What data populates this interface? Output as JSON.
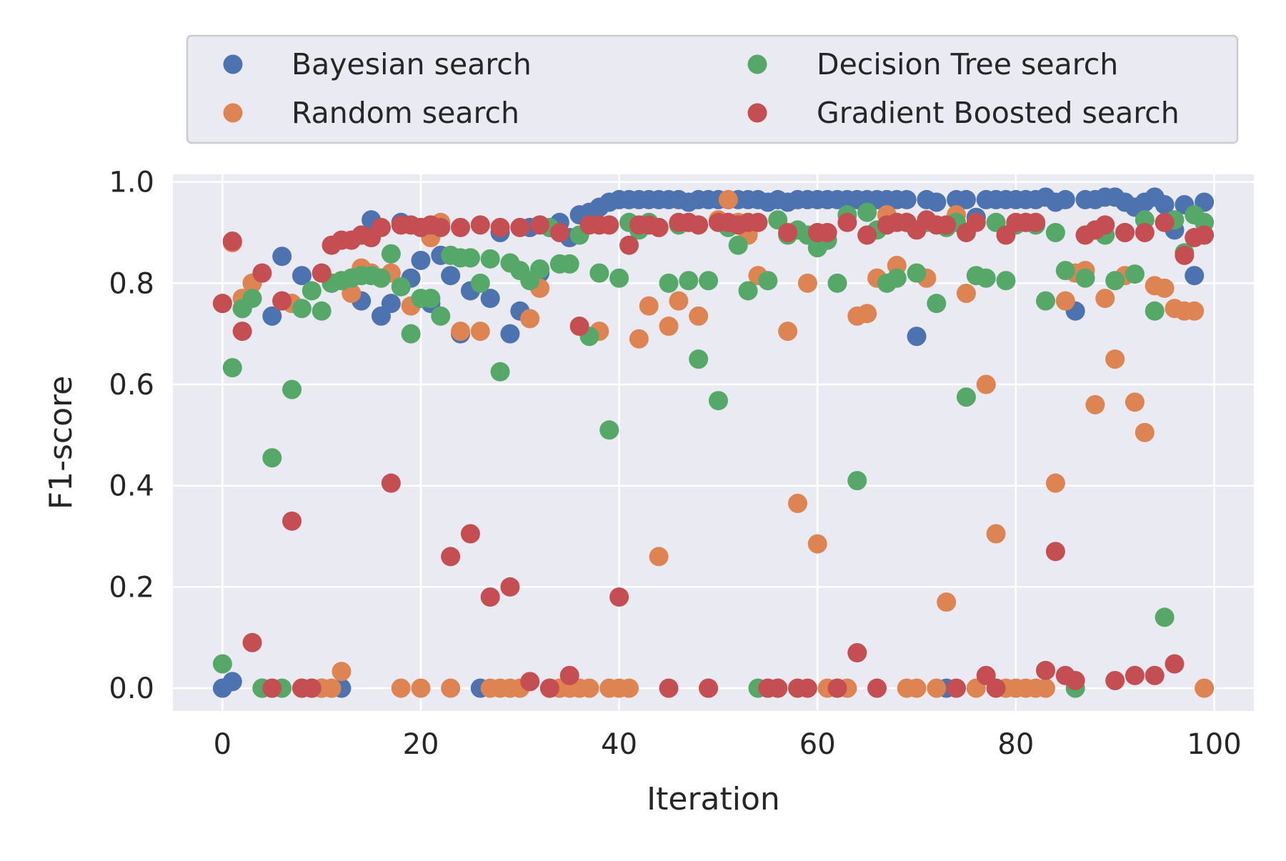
{
  "chart_data": {
    "type": "scatter",
    "title": "",
    "xlabel": "Iteration",
    "ylabel": "F1-score",
    "xlim": [
      -5,
      104
    ],
    "ylim": [
      -0.045,
      1.015
    ],
    "xticks": [
      0,
      20,
      40,
      60,
      80,
      100
    ],
    "yticks": [
      0.0,
      0.2,
      0.4,
      0.6,
      0.8,
      1.0
    ],
    "xtick_labels": [
      "0",
      "20",
      "40",
      "60",
      "80",
      "100"
    ],
    "ytick_labels": [
      "0.0",
      "0.2",
      "0.4",
      "0.6",
      "0.8",
      "1.0"
    ],
    "grid": true,
    "legend_position": "top, above plot (2 columns)",
    "colors": {
      "background": "#eaeaf2",
      "grid": "#ffffff",
      "bayesian": "#4c72b0",
      "random": "#dd8452",
      "decision_tree": "#55a868",
      "gradient_boosted": "#c44e52"
    },
    "series": [
      {
        "name": "Bayesian search",
        "color": "#4c72b0",
        "x": [
          0,
          1,
          2,
          3,
          4,
          5,
          6,
          7,
          8,
          9,
          10,
          11,
          12,
          13,
          14,
          15,
          16,
          17,
          18,
          19,
          20,
          21,
          22,
          23,
          24,
          25,
          26,
          27,
          28,
          29,
          30,
          31,
          32,
          33,
          34,
          35,
          36,
          37,
          38,
          39,
          40,
          41,
          42,
          43,
          44,
          45,
          46,
          47,
          48,
          49,
          50,
          51,
          52,
          53,
          54,
          55,
          56,
          57,
          58,
          59,
          60,
          61,
          62,
          63,
          64,
          65,
          66,
          67,
          68,
          69,
          70,
          71,
          72,
          73,
          74,
          75,
          76,
          77,
          78,
          79,
          80,
          81,
          82,
          83,
          84,
          85,
          86,
          87,
          88,
          89,
          90,
          91,
          92,
          93,
          94,
          95,
          96,
          97,
          98,
          99
        ],
        "y": [
          0.0,
          0.013,
          0.75,
          0.8,
          0.0,
          0.735,
          0.853,
          0.76,
          0.815,
          0.0,
          0.0,
          0.8,
          0.0,
          0.81,
          0.765,
          0.925,
          0.735,
          0.76,
          0.92,
          0.81,
          0.845,
          0.76,
          0.855,
          0.815,
          0.7,
          0.785,
          0.0,
          0.77,
          0.9,
          0.7,
          0.745,
          0.91,
          0.82,
          0.91,
          0.92,
          0.89,
          0.935,
          0.94,
          0.95,
          0.96,
          0.965,
          0.965,
          0.965,
          0.965,
          0.965,
          0.965,
          0.965,
          0.96,
          0.965,
          0.965,
          0.965,
          0.965,
          0.965,
          0.965,
          0.965,
          0.96,
          0.965,
          0.96,
          0.965,
          0.965,
          0.965,
          0.965,
          0.965,
          0.965,
          0.965,
          0.965,
          0.965,
          0.965,
          0.965,
          0.965,
          0.695,
          0.965,
          0.96,
          0.0,
          0.965,
          0.965,
          0.93,
          0.965,
          0.965,
          0.965,
          0.965,
          0.965,
          0.965,
          0.97,
          0.96,
          0.965,
          0.745,
          0.965,
          0.965,
          0.97,
          0.97,
          0.96,
          0.95,
          0.96,
          0.97,
          0.955,
          0.905,
          0.955,
          0.815,
          0.96
        ]
      },
      {
        "name": "Random search",
        "color": "#dd8452",
        "x": [
          0,
          1,
          2,
          3,
          4,
          5,
          6,
          7,
          8,
          9,
          10,
          11,
          12,
          13,
          14,
          15,
          16,
          17,
          18,
          19,
          20,
          21,
          22,
          23,
          24,
          25,
          26,
          27,
          28,
          29,
          30,
          31,
          32,
          33,
          34,
          35,
          36,
          37,
          38,
          39,
          40,
          41,
          42,
          43,
          44,
          45,
          46,
          47,
          48,
          49,
          50,
          51,
          52,
          53,
          54,
          55,
          56,
          57,
          58,
          59,
          60,
          61,
          62,
          63,
          64,
          65,
          66,
          67,
          68,
          69,
          70,
          71,
          72,
          73,
          74,
          75,
          76,
          77,
          78,
          79,
          80,
          81,
          82,
          83,
          84,
          85,
          86,
          87,
          88,
          89,
          90,
          91,
          92,
          93,
          94,
          95,
          96,
          97,
          98,
          99
        ],
        "y": [
          0.76,
          0.88,
          0.77,
          0.8,
          0.0,
          0.0,
          0.765,
          0.76,
          0.0,
          0.0,
          0.0,
          0.0,
          0.033,
          0.78,
          0.83,
          0.82,
          0.81,
          0.82,
          0.0,
          0.755,
          0.0,
          0.89,
          0.92,
          0.0,
          0.705,
          0.85,
          0.705,
          0.0,
          0.0,
          0.0,
          0.0,
          0.73,
          0.79,
          0.0,
          0.0,
          0.0,
          0.0,
          0.0,
          0.705,
          0.0,
          0.0,
          0.0,
          0.69,
          0.755,
          0.26,
          0.715,
          0.765,
          0.92,
          0.735,
          0.0,
          0.925,
          0.965,
          0.92,
          0.895,
          0.815,
          0.0,
          0.0,
          0.705,
          0.365,
          0.8,
          0.285,
          0.0,
          0.0,
          0.0,
          0.735,
          0.74,
          0.81,
          0.935,
          0.835,
          0.0,
          0.0,
          0.81,
          0.0,
          0.17,
          0.935,
          0.78,
          0.0,
          0.6,
          0.305,
          0.0,
          0.0,
          0.0,
          0.0,
          0.0,
          0.405,
          0.765,
          0.82,
          0.825,
          0.56,
          0.77,
          0.65,
          0.815,
          0.565,
          0.505,
          0.795,
          0.79,
          0.75,
          0.745,
          0.745,
          0.0
        ]
      },
      {
        "name": "Decision Tree search",
        "color": "#55a868",
        "x": [
          0,
          1,
          2,
          3,
          4,
          5,
          6,
          7,
          8,
          9,
          10,
          11,
          12,
          13,
          14,
          15,
          16,
          17,
          18,
          19,
          20,
          21,
          22,
          23,
          24,
          25,
          26,
          27,
          28,
          29,
          30,
          31,
          32,
          33,
          34,
          35,
          36,
          37,
          38,
          39,
          40,
          41,
          42,
          43,
          44,
          45,
          46,
          47,
          48,
          49,
          50,
          51,
          52,
          53,
          54,
          55,
          56,
          57,
          58,
          59,
          60,
          61,
          62,
          63,
          64,
          65,
          66,
          67,
          68,
          69,
          70,
          71,
          72,
          73,
          74,
          75,
          76,
          77,
          78,
          79,
          80,
          81,
          82,
          83,
          84,
          85,
          86,
          87,
          88,
          89,
          90,
          91,
          92,
          93,
          94,
          95,
          96,
          97,
          98,
          99
        ],
        "y": [
          0.048,
          0.633,
          0.75,
          0.77,
          0.0,
          0.455,
          0.0,
          0.59,
          0.75,
          0.785,
          0.745,
          0.8,
          0.805,
          0.81,
          0.815,
          0.815,
          0.81,
          0.858,
          0.793,
          0.7,
          0.77,
          0.77,
          0.735,
          0.855,
          0.85,
          0.85,
          0.8,
          0.848,
          0.625,
          0.84,
          0.825,
          0.805,
          0.828,
          0.91,
          0.838,
          0.838,
          0.895,
          0.695,
          0.82,
          0.51,
          0.81,
          0.92,
          0.905,
          0.92,
          0.91,
          0.8,
          0.915,
          0.805,
          0.65,
          0.805,
          0.568,
          0.91,
          0.875,
          0.785,
          0.0,
          0.805,
          0.925,
          0.895,
          0.905,
          0.895,
          0.87,
          0.885,
          0.8,
          0.935,
          0.41,
          0.94,
          0.905,
          0.8,
          0.81,
          0.92,
          0.82,
          0.92,
          0.76,
          0.91,
          0.92,
          0.575,
          0.815,
          0.81,
          0.92,
          0.805,
          0.915,
          0.92,
          0.915,
          0.765,
          0.9,
          0.825,
          0.0,
          0.81,
          0.905,
          0.895,
          0.805,
          0.9,
          0.818,
          0.925,
          0.745,
          0.14,
          0.925,
          0.86,
          0.935,
          0.92
        ]
      },
      {
        "name": "Gradient Boosted search",
        "color": "#c44e52",
        "x": [
          0,
          1,
          2,
          3,
          4,
          5,
          6,
          7,
          8,
          9,
          10,
          11,
          12,
          13,
          14,
          15,
          16,
          17,
          18,
          19,
          20,
          21,
          22,
          23,
          24,
          25,
          26,
          27,
          28,
          29,
          30,
          31,
          32,
          33,
          34,
          35,
          36,
          37,
          38,
          39,
          40,
          41,
          42,
          43,
          44,
          45,
          46,
          47,
          48,
          49,
          50,
          51,
          52,
          53,
          54,
          55,
          56,
          57,
          58,
          59,
          60,
          61,
          62,
          63,
          64,
          65,
          66,
          67,
          68,
          69,
          70,
          71,
          72,
          73,
          74,
          75,
          76,
          77,
          78,
          79,
          80,
          81,
          82,
          83,
          84,
          85,
          86,
          87,
          88,
          89,
          90,
          91,
          92,
          93,
          94,
          95,
          96,
          97,
          98,
          99
        ],
        "y": [
          0.76,
          0.883,
          0.705,
          0.09,
          0.82,
          0.0,
          0.765,
          0.33,
          0.0,
          0.0,
          0.82,
          0.875,
          0.885,
          0.885,
          0.895,
          0.89,
          0.91,
          0.405,
          0.915,
          0.915,
          0.91,
          0.915,
          0.91,
          0.26,
          0.91,
          0.305,
          0.915,
          0.18,
          0.91,
          0.2,
          0.91,
          0.013,
          0.915,
          0.0,
          0.9,
          0.025,
          0.715,
          0.915,
          0.915,
          0.915,
          0.18,
          0.875,
          0.915,
          0.915,
          0.91,
          0.0,
          0.92,
          0.92,
          0.915,
          0.0,
          0.92,
          0.92,
          0.915,
          0.92,
          0.92,
          0.0,
          0.0,
          0.9,
          0.0,
          0.0,
          0.9,
          0.9,
          0.0,
          0.92,
          0.07,
          0.895,
          0.0,
          0.915,
          0.92,
          0.92,
          0.905,
          0.925,
          0.915,
          0.915,
          0.0,
          0.9,
          0.92,
          0.025,
          0.0,
          0.895,
          0.92,
          0.92,
          0.92,
          0.035,
          0.27,
          0.025,
          0.015,
          0.895,
          0.905,
          0.915,
          0.015,
          0.9,
          0.025,
          0.9,
          0.025,
          0.92,
          0.048,
          0.855,
          0.89,
          0.895
        ]
      }
    ]
  }
}
